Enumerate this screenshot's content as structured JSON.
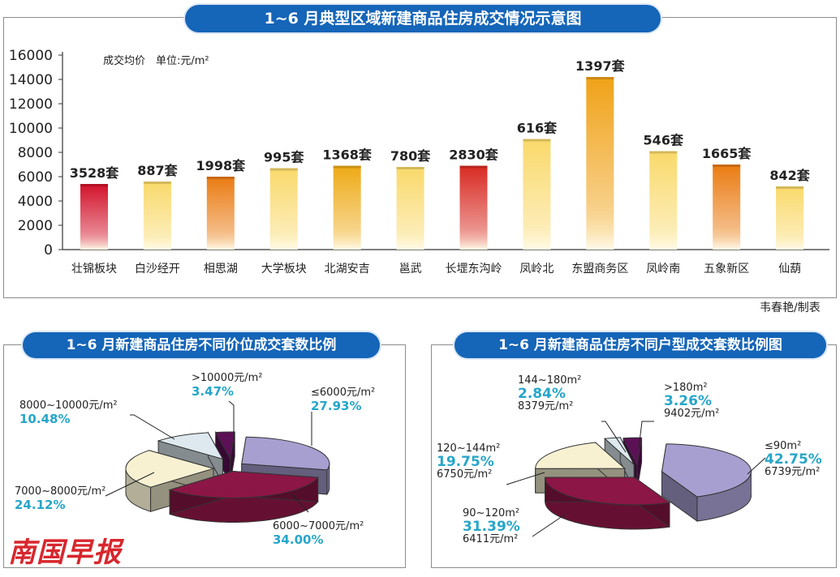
{
  "top_title": "1~6 月典型区域新建商品住房成交情况示意图",
  "credit": "韦春艳/制表",
  "brand": "南国早报",
  "chart_data": [
    {
      "type": "bar",
      "title": "1~6 月典型区域新建商品住房成交情况示意图",
      "ylabel": "成交均价　单位:元/m²",
      "ylim": [
        0,
        16000
      ],
      "yticks": [
        "0",
        "2000",
        "4000",
        "6000",
        "8000",
        "10000",
        "12000",
        "14000",
        "16000"
      ],
      "categories": [
        "壮锦板块",
        "白沙经开",
        "相思湖",
        "大学板块",
        "北湖安吉",
        "邕武",
        "长堽东沟岭",
        "凤岭北",
        "东盟商务区",
        "凤岭南",
        "五象新区",
        "仙葫"
      ],
      "values": [
        5400,
        5600,
        6000,
        6700,
        6900,
        6800,
        6900,
        9100,
        14200,
        8100,
        7000,
        5200
      ],
      "data_labels": [
        "3528套",
        "887套",
        "1998套",
        "995套",
        "1368套",
        "780套",
        "2830套",
        "616套",
        "1397套",
        "546套",
        "1665套",
        "842套"
      ],
      "colors": [
        "#d2132b",
        "#f9d96a",
        "#ea7b12",
        "#f9d96a",
        "#eeaa16",
        "#f9d96a",
        "#d82a22",
        "#f9d96a",
        "#f0a218",
        "#f9d96a",
        "#ea7b12",
        "#f9d96a"
      ],
      "grid": false
    },
    {
      "type": "pie",
      "title": "1~6 月新建商品住房不同价位成交套数比例",
      "slices": [
        {
          "label": "≤6000元/m²",
          "value": 27.93,
          "pct": "27.93%",
          "color": "#a79fd0"
        },
        {
          "label": "6000~7000元/m²",
          "value": 34.0,
          "pct": "34.00%",
          "color": "#8c1646"
        },
        {
          "label": "7000~8000元/m²",
          "value": 24.12,
          "pct": "24.12%",
          "color": "#f7f1d2"
        },
        {
          "label": "8000~10000元/m²",
          "value": 10.48,
          "pct": "10.48%",
          "color": "#dde9ef"
        },
        {
          "label": ">10000元/m²",
          "value": 3.47,
          "pct": "3.47%",
          "color": "#5c1156"
        }
      ]
    },
    {
      "type": "pie",
      "title": "1~6 月新建商品住房不同户型成交套数比例图",
      "slices": [
        {
          "label": "≤90m²",
          "value": 42.75,
          "pct": "42.75%",
          "price": "6739元/m²",
          "color": "#a79fd0"
        },
        {
          "label": "90~120m²",
          "value": 31.39,
          "pct": "31.39%",
          "price": "6411元/m²",
          "color": "#8c1646"
        },
        {
          "label": "120~144m²",
          "value": 19.75,
          "pct": "19.75%",
          "price": "6750元/m²",
          "color": "#f7f1d2"
        },
        {
          "label": "144~180m²",
          "value": 2.84,
          "pct": "2.84%",
          "price": "8379元/m²",
          "color": "#dde9ef"
        },
        {
          "label": ">180m²",
          "value": 3.26,
          "pct": "3.26%",
          "price": "9402元/m²",
          "color": "#5c1156"
        }
      ]
    }
  ]
}
